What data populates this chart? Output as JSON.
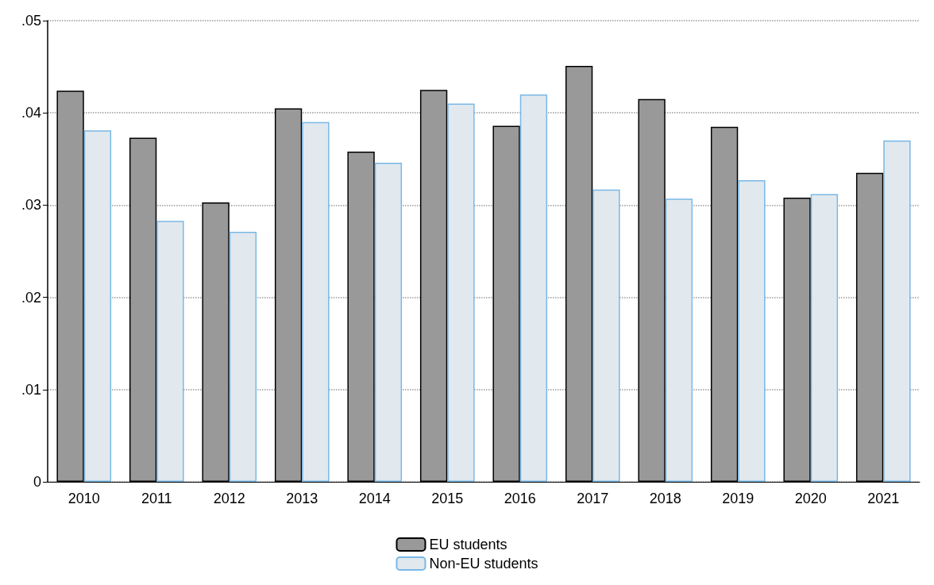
{
  "chart_data": {
    "type": "bar",
    "categories": [
      "2010",
      "2011",
      "2012",
      "2013",
      "2014",
      "2015",
      "2016",
      "2017",
      "2018",
      "2019",
      "2020",
      "2021"
    ],
    "series": [
      {
        "name": "EU students",
        "color": "#999999",
        "values": [
          0.0424,
          0.0373,
          0.0303,
          0.0405,
          0.0358,
          0.0425,
          0.0386,
          0.0451,
          0.0415,
          0.0385,
          0.0308,
          0.0335
        ]
      },
      {
        "name": "Non-EU students",
        "color": "#e1e9ef",
        "values": [
          0.0381,
          0.0283,
          0.0271,
          0.039,
          0.0346,
          0.041,
          0.042,
          0.0317,
          0.0307,
          0.0327,
          0.0312,
          0.037
        ]
      }
    ],
    "ylim": [
      0,
      0.05
    ],
    "yticks": [
      {
        "value": 0,
        "label": "0"
      },
      {
        "value": 0.01,
        "label": ".01"
      },
      {
        "value": 0.02,
        "label": ".02"
      },
      {
        "value": 0.03,
        "label": ".03"
      },
      {
        "value": 0.04,
        "label": ".04"
      },
      {
        "value": 0.05,
        "label": ".05"
      }
    ],
    "grid": "y",
    "legend": "bottom"
  }
}
